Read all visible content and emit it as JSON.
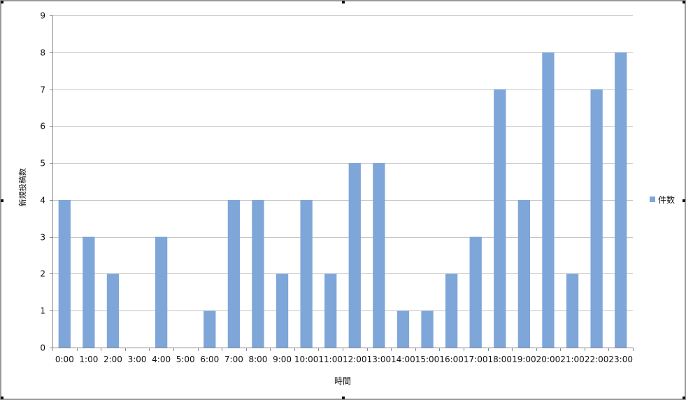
{
  "chart_data": {
    "type": "bar",
    "categories": [
      "0:00",
      "1:00",
      "2:00",
      "3:00",
      "4:00",
      "5:00",
      "6:00",
      "7:00",
      "8:00",
      "9:00",
      "10:00",
      "11:00",
      "12:00",
      "13:00",
      "14:00",
      "15:00",
      "16:00",
      "17:00",
      "18:00",
      "19:00",
      "20:00",
      "21:00",
      "22:00",
      "23:00"
    ],
    "series": [
      {
        "name": "件数",
        "values": [
          4,
          3,
          2,
          0,
          3,
          0,
          1,
          4,
          4,
          2,
          4,
          2,
          5,
          5,
          1,
          1,
          2,
          3,
          7,
          4,
          8,
          2,
          7,
          8
        ]
      }
    ],
    "xlabel": "時間",
    "ylabel": "新規投稿数",
    "ylim": [
      0,
      9
    ],
    "yticks": [
      0,
      1,
      2,
      3,
      4,
      5,
      6,
      7,
      8,
      9
    ],
    "grid": true,
    "legend": "right",
    "colors": {
      "bar": "#7ea6d9",
      "grid": "#c4c4c4",
      "axis": "#8c8c8c",
      "frame": "#9a9a9a"
    }
  }
}
